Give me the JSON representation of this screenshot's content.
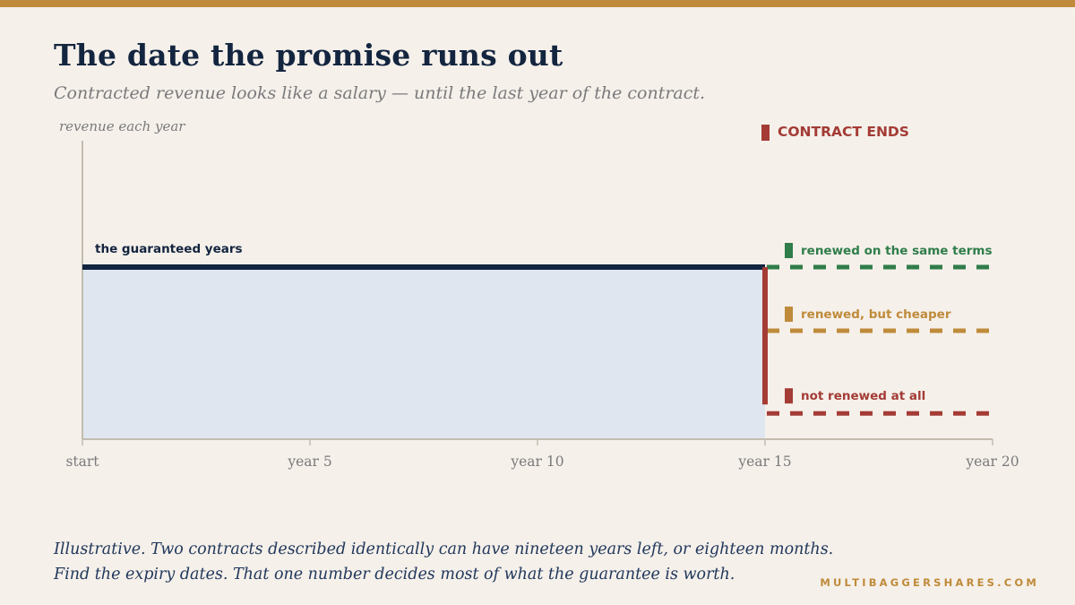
{
  "title": "The date the promise runs out",
  "subtitle": "Contracted revenue looks like a salary — until the last year of the contract.",
  "colors": {
    "navy": "#13253f",
    "fill": "#dfe6ef",
    "green": "#2f7d4a",
    "gold": "#bf8b3a",
    "red": "#a43b35",
    "axis": "#c4bcb0",
    "muted": "#7a7a7c"
  },
  "chart_data": {
    "type": "area",
    "ylabel": "revenue each year",
    "xlabel": "",
    "x_ticks": [
      {
        "x": 0,
        "label": "start"
      },
      {
        "x": 5,
        "label": "year 5"
      },
      {
        "x": 10,
        "label": "year 10"
      },
      {
        "x": 15,
        "label": "year 15"
      },
      {
        "x": 20,
        "label": "year 20"
      }
    ],
    "xlim": [
      0,
      20
    ],
    "ylim": [
      0,
      100
    ],
    "grid": false,
    "guaranteed": {
      "label": "the guaranteed years",
      "x": [
        0,
        15
      ],
      "y": 100
    },
    "contract_end": {
      "x": 15,
      "label": "CONTRACT ENDS"
    },
    "scenarios": [
      {
        "name": "renewed on the same terms",
        "x": [
          15,
          20
        ],
        "y": 100,
        "color": "#2f7d4a"
      },
      {
        "name": "renewed, but cheaper",
        "x": [
          15,
          20
        ],
        "y": 63,
        "color": "#bf8b3a"
      },
      {
        "name": "not renewed at all",
        "x": [
          15,
          20
        ],
        "y": 15,
        "color": "#a43b35"
      }
    ]
  },
  "footnote": {
    "line1": "Illustrative. Two contracts described identically can have nineteen years left, or eighteen months.",
    "line2": "Find the expiry dates. That one number decides most of what the guarantee is worth."
  },
  "brand": "MULTIBAGGERSHARES.COM"
}
